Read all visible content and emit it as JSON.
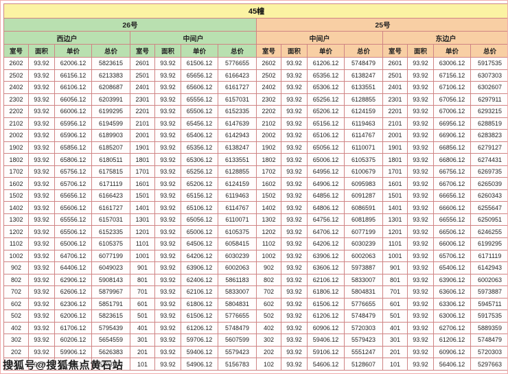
{
  "title": "45幢",
  "buildings": [
    {
      "name": "26号",
      "units": [
        "西边户",
        "中间户"
      ]
    },
    {
      "name": "25号",
      "units": [
        "中间户",
        "东边户"
      ]
    }
  ],
  "columns": [
    "室号",
    "面积",
    "单价",
    "总价"
  ],
  "watermark": "搜狐号@搜狐焦点黄石站",
  "colors": {
    "title_bg": "#fbf3a3",
    "building26_bg": "#b9e0b0",
    "building25_bg": "#f8cfa4",
    "grid": "#cf8383"
  },
  "rows": [
    [
      "2602",
      "93.92",
      "62006.12",
      "5823615",
      "2601",
      "93.92",
      "61506.12",
      "5776655",
      "2602",
      "93.92",
      "61206.12",
      "5748479",
      "2601",
      "93.92",
      "63006.12",
      "5917535"
    ],
    [
      "2502",
      "93.92",
      "66156.12",
      "6213383",
      "2501",
      "93.92",
      "65656.12",
      "6166423",
      "2502",
      "93.92",
      "65356.12",
      "6138247",
      "2501",
      "93.92",
      "67156.12",
      "6307303"
    ],
    [
      "2402",
      "93.92",
      "66106.12",
      "6208687",
      "2401",
      "93.92",
      "65606.12",
      "6161727",
      "2402",
      "93.92",
      "65306.12",
      "6133551",
      "2401",
      "93.92",
      "67106.12",
      "6302607"
    ],
    [
      "2302",
      "93.92",
      "66056.12",
      "6203991",
      "2301",
      "93.92",
      "65556.12",
      "6157031",
      "2302",
      "93.92",
      "65256.12",
      "6128855",
      "2301",
      "93.92",
      "67056.12",
      "6297911"
    ],
    [
      "2202",
      "93.92",
      "66006.12",
      "6199295",
      "2201",
      "93.92",
      "65506.12",
      "6152335",
      "2202",
      "93.92",
      "65206.12",
      "6124159",
      "2201",
      "93.92",
      "67006.12",
      "6293215"
    ],
    [
      "2102",
      "93.92",
      "65956.12",
      "6194599",
      "2101",
      "93.92",
      "65456.12",
      "6147639",
      "2102",
      "93.92",
      "65156.12",
      "6119463",
      "2101",
      "93.92",
      "66956.12",
      "6288519"
    ],
    [
      "2002",
      "93.92",
      "65906.12",
      "6189903",
      "2001",
      "93.92",
      "65406.12",
      "6142943",
      "2002",
      "93.92",
      "65106.12",
      "6114767",
      "2001",
      "93.92",
      "66906.12",
      "6283823"
    ],
    [
      "1902",
      "93.92",
      "65856.12",
      "6185207",
      "1901",
      "93.92",
      "65356.12",
      "6138247",
      "1902",
      "93.92",
      "65056.12",
      "6110071",
      "1901",
      "93.92",
      "66856.12",
      "6279127"
    ],
    [
      "1802",
      "93.92",
      "65806.12",
      "6180511",
      "1801",
      "93.92",
      "65306.12",
      "6133551",
      "1802",
      "93.92",
      "65006.12",
      "6105375",
      "1801",
      "93.92",
      "66806.12",
      "6274431"
    ],
    [
      "1702",
      "93.92",
      "65756.12",
      "6175815",
      "1701",
      "93.92",
      "65256.12",
      "6128855",
      "1702",
      "93.92",
      "64956.12",
      "6100679",
      "1701",
      "93.92",
      "66756.12",
      "6269735"
    ],
    [
      "1602",
      "93.92",
      "65706.12",
      "6171119",
      "1601",
      "93.92",
      "65206.12",
      "6124159",
      "1602",
      "93.92",
      "64906.12",
      "6095983",
      "1601",
      "93.92",
      "66706.12",
      "6265039"
    ],
    [
      "1502",
      "93.92",
      "65656.12",
      "6166423",
      "1501",
      "93.92",
      "65156.12",
      "6119463",
      "1502",
      "93.92",
      "64856.12",
      "6091287",
      "1501",
      "93.92",
      "66656.12",
      "6260343"
    ],
    [
      "1402",
      "93.92",
      "65606.12",
      "6161727",
      "1401",
      "93.92",
      "65106.12",
      "6114767",
      "1402",
      "93.92",
      "64806.12",
      "6086591",
      "1401",
      "93.92",
      "66606.12",
      "6255647"
    ],
    [
      "1302",
      "93.92",
      "65556.12",
      "6157031",
      "1301",
      "93.92",
      "65056.12",
      "6110071",
      "1302",
      "93.92",
      "64756.12",
      "6081895",
      "1301",
      "93.92",
      "66556.12",
      "6250951"
    ],
    [
      "1202",
      "93.92",
      "65506.12",
      "6152335",
      "1201",
      "93.92",
      "65006.12",
      "6105375",
      "1202",
      "93.92",
      "64706.12",
      "6077199",
      "1201",
      "93.92",
      "66506.12",
      "6246255"
    ],
    [
      "1102",
      "93.92",
      "65006.12",
      "6105375",
      "1101",
      "93.92",
      "64506.12",
      "6058415",
      "1102",
      "93.92",
      "64206.12",
      "6030239",
      "1101",
      "93.92",
      "66006.12",
      "6199295"
    ],
    [
      "1002",
      "93.92",
      "64706.12",
      "6077199",
      "1001",
      "93.92",
      "64206.12",
      "6030239",
      "1002",
      "93.92",
      "63906.12",
      "6002063",
      "1001",
      "93.92",
      "65706.12",
      "6171119"
    ],
    [
      "902",
      "93.92",
      "64406.12",
      "6049023",
      "901",
      "93.92",
      "63906.12",
      "6002063",
      "902",
      "93.92",
      "63606.12",
      "5973887",
      "901",
      "93.92",
      "65406.12",
      "6142943"
    ],
    [
      "802",
      "93.92",
      "62906.12",
      "5908143",
      "801",
      "93.92",
      "62406.12",
      "5861183",
      "802",
      "93.92",
      "62106.12",
      "5833007",
      "801",
      "93.92",
      "63906.12",
      "6002063"
    ],
    [
      "702",
      "93.92",
      "62606.12",
      "5879967",
      "701",
      "93.92",
      "62106.12",
      "5833007",
      "702",
      "93.92",
      "61806.12",
      "5804831",
      "701",
      "93.92",
      "63606.12",
      "5973887"
    ],
    [
      "602",
      "93.92",
      "62306.12",
      "5851791",
      "601",
      "93.92",
      "61806.12",
      "5804831",
      "602",
      "93.92",
      "61506.12",
      "5776655",
      "601",
      "93.92",
      "63306.12",
      "5945711"
    ],
    [
      "502",
      "93.92",
      "62006.12",
      "5823615",
      "501",
      "93.92",
      "61506.12",
      "5776655",
      "502",
      "93.92",
      "61206.12",
      "5748479",
      "501",
      "93.92",
      "63006.12",
      "5917535"
    ],
    [
      "402",
      "93.92",
      "61706.12",
      "5795439",
      "401",
      "93.92",
      "61206.12",
      "5748479",
      "402",
      "93.92",
      "60906.12",
      "5720303",
      "401",
      "93.92",
      "62706.12",
      "5889359"
    ],
    [
      "302",
      "93.92",
      "60206.12",
      "5654559",
      "301",
      "93.92",
      "59706.12",
      "5607599",
      "302",
      "93.92",
      "59406.12",
      "5579423",
      "301",
      "93.92",
      "61206.12",
      "5748479"
    ],
    [
      "202",
      "93.92",
      "59906.12",
      "5626383",
      "201",
      "93.92",
      "59406.12",
      "5579423",
      "202",
      "93.92",
      "59106.12",
      "5551247",
      "201",
      "93.92",
      "60906.12",
      "5720303"
    ],
    [
      "102",
      "93.92",
      "55406.12",
      "5203743",
      "101",
      "93.92",
      "54906.12",
      "5156783",
      "102",
      "93.92",
      "54606.12",
      "5128607",
      "101",
      "93.92",
      "56406.12",
      "5297663"
    ]
  ]
}
